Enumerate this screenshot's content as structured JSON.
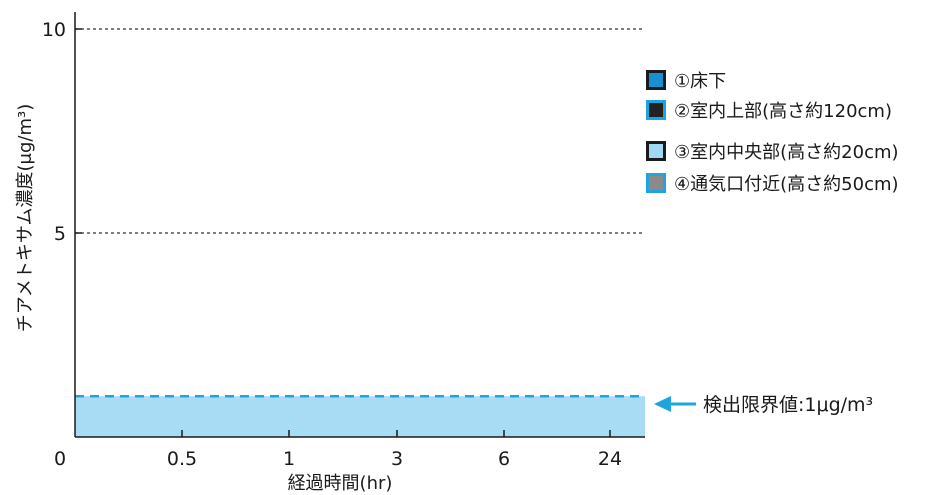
{
  "chart_data": {
    "type": "area",
    "xlabel": "経過時間(hr)",
    "ylabel": "チアメトキサム濃度(μg/m³)",
    "categories": [
      "0",
      "0.5",
      "1",
      "3",
      "6",
      "24"
    ],
    "ylim": [
      0,
      10
    ],
    "y_ticks": [
      "5",
      "10"
    ],
    "grid": "dashed horizontal at 5 and 10",
    "series": [
      {
        "name": "①床下",
        "values": [
          1,
          1,
          1,
          1,
          1,
          1
        ],
        "color": "#1a8fd0",
        "edge": "#1a1a1a"
      },
      {
        "name": "②室内上部(高さ約120cm)",
        "values": [
          1,
          1,
          1,
          1,
          1,
          1
        ],
        "color": "#222222",
        "edge": "#1ea5df"
      },
      {
        "name": "③室内中央部(高さ約20cm)",
        "values": [
          1,
          1,
          1,
          1,
          1,
          1
        ],
        "color": "#9fd8f3",
        "edge": "#1a1a1a"
      },
      {
        "name": "④通気口付近(高さ約50cm)",
        "values": [
          1,
          1,
          1,
          1,
          1,
          1
        ],
        "color": "#8a8a8a",
        "edge": "#1ea5df"
      }
    ],
    "detection_limit": {
      "value": 1,
      "label": "検出限界値:1μg/m³",
      "color": "#1ea5df"
    },
    "fill_color": "#a8dcf5",
    "legend_position": "right"
  }
}
